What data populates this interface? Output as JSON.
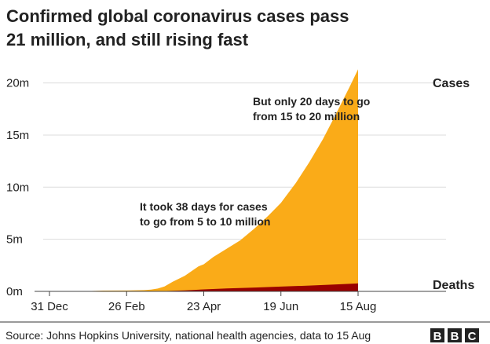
{
  "chart_data": {
    "type": "area",
    "title": "Confirmed global coronavirus cases pass",
    "title_line2": "21 million, and still rising fast",
    "xlabel": "",
    "ylabel": "",
    "x_unit": "days since 31 Dec",
    "xlim": [
      0,
      228
    ],
    "ylim": [
      0,
      21.5
    ],
    "grid": true,
    "x_ticks": [
      {
        "day": 0,
        "label": "31 Dec"
      },
      {
        "day": 57,
        "label": "26 Feb"
      },
      {
        "day": 114,
        "label": "23 Apr"
      },
      {
        "day": 171,
        "label": "19 Jun"
      },
      {
        "day": 228,
        "label": "15 Aug"
      }
    ],
    "y_ticks": [
      {
        "value": 0,
        "label": "0m"
      },
      {
        "value": 5,
        "label": "5m"
      },
      {
        "value": 10,
        "label": "10m"
      },
      {
        "value": 15,
        "label": "15m"
      },
      {
        "value": 20,
        "label": "20m"
      }
    ],
    "series": [
      {
        "name": "Cases",
        "color": "#faab18",
        "x": [
          0,
          22,
          40,
          57,
          70,
          75,
          80,
          85,
          91,
          100,
          110,
          114,
          121,
          131,
          141,
          152,
          162,
          171,
          182,
          192,
          202,
          212,
          222,
          228
        ],
        "values": [
          0,
          0.001,
          0.075,
          0.08,
          0.12,
          0.17,
          0.27,
          0.47,
          0.93,
          1.5,
          2.4,
          2.6,
          3.3,
          4.1,
          4.9,
          6.1,
          7.3,
          8.5,
          10.4,
          12.4,
          14.6,
          17.1,
          19.7,
          21.3
        ]
      },
      {
        "name": "Deaths",
        "color": "#990000",
        "x": [
          0,
          70,
          80,
          91,
          100,
          114,
          131,
          152,
          171,
          192,
          212,
          228
        ],
        "values": [
          0,
          0.004,
          0.01,
          0.05,
          0.09,
          0.19,
          0.28,
          0.37,
          0.46,
          0.56,
          0.67,
          0.76
        ]
      }
    ],
    "annotations": [
      "It took 38 days for cases",
      "to go from 5 to 10 million",
      "But only 20 days to go",
      "from 15 to 20 million"
    ]
  },
  "footer": {
    "source": "Source: Johns Hopkins University, national health agencies, data to 15 Aug",
    "logo": "BBC"
  }
}
